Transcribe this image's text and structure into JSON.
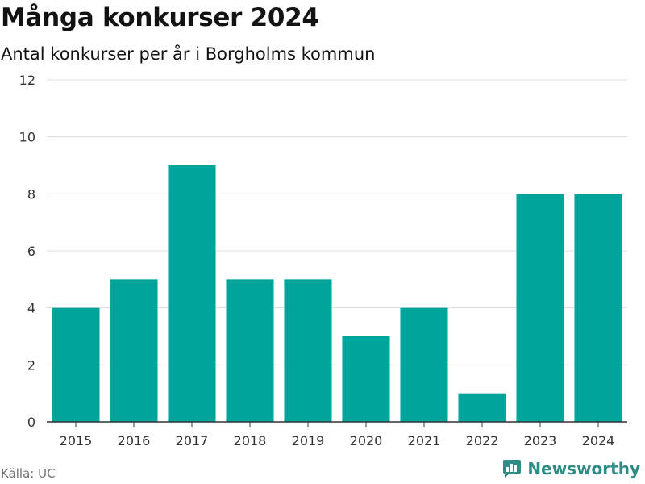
{
  "header": {
    "title": "Många konkurser 2024",
    "subtitle": "Antal konkurser per år i Borgholms kommun"
  },
  "footer": {
    "source": "Källa: UC",
    "brand": "Newsworthy"
  },
  "colors": {
    "bar": "#00a49a",
    "grid": "#dddddd",
    "axis": "#333333",
    "brand": "#2e8d86"
  },
  "chart_data": {
    "type": "bar",
    "categories": [
      "2015",
      "2016",
      "2017",
      "2018",
      "2019",
      "2020",
      "2021",
      "2022",
      "2023",
      "2024"
    ],
    "values": [
      4,
      5,
      9,
      5,
      5,
      3,
      4,
      1,
      8,
      8
    ],
    "title": "Många konkurser 2024",
    "subtitle": "Antal konkurser per år i Borgholms kommun",
    "xlabel": "",
    "ylabel": "",
    "ylim": [
      0,
      12
    ],
    "yticks": [
      0,
      2,
      4,
      6,
      8,
      10,
      12
    ],
    "grid": true,
    "legend": "none"
  }
}
